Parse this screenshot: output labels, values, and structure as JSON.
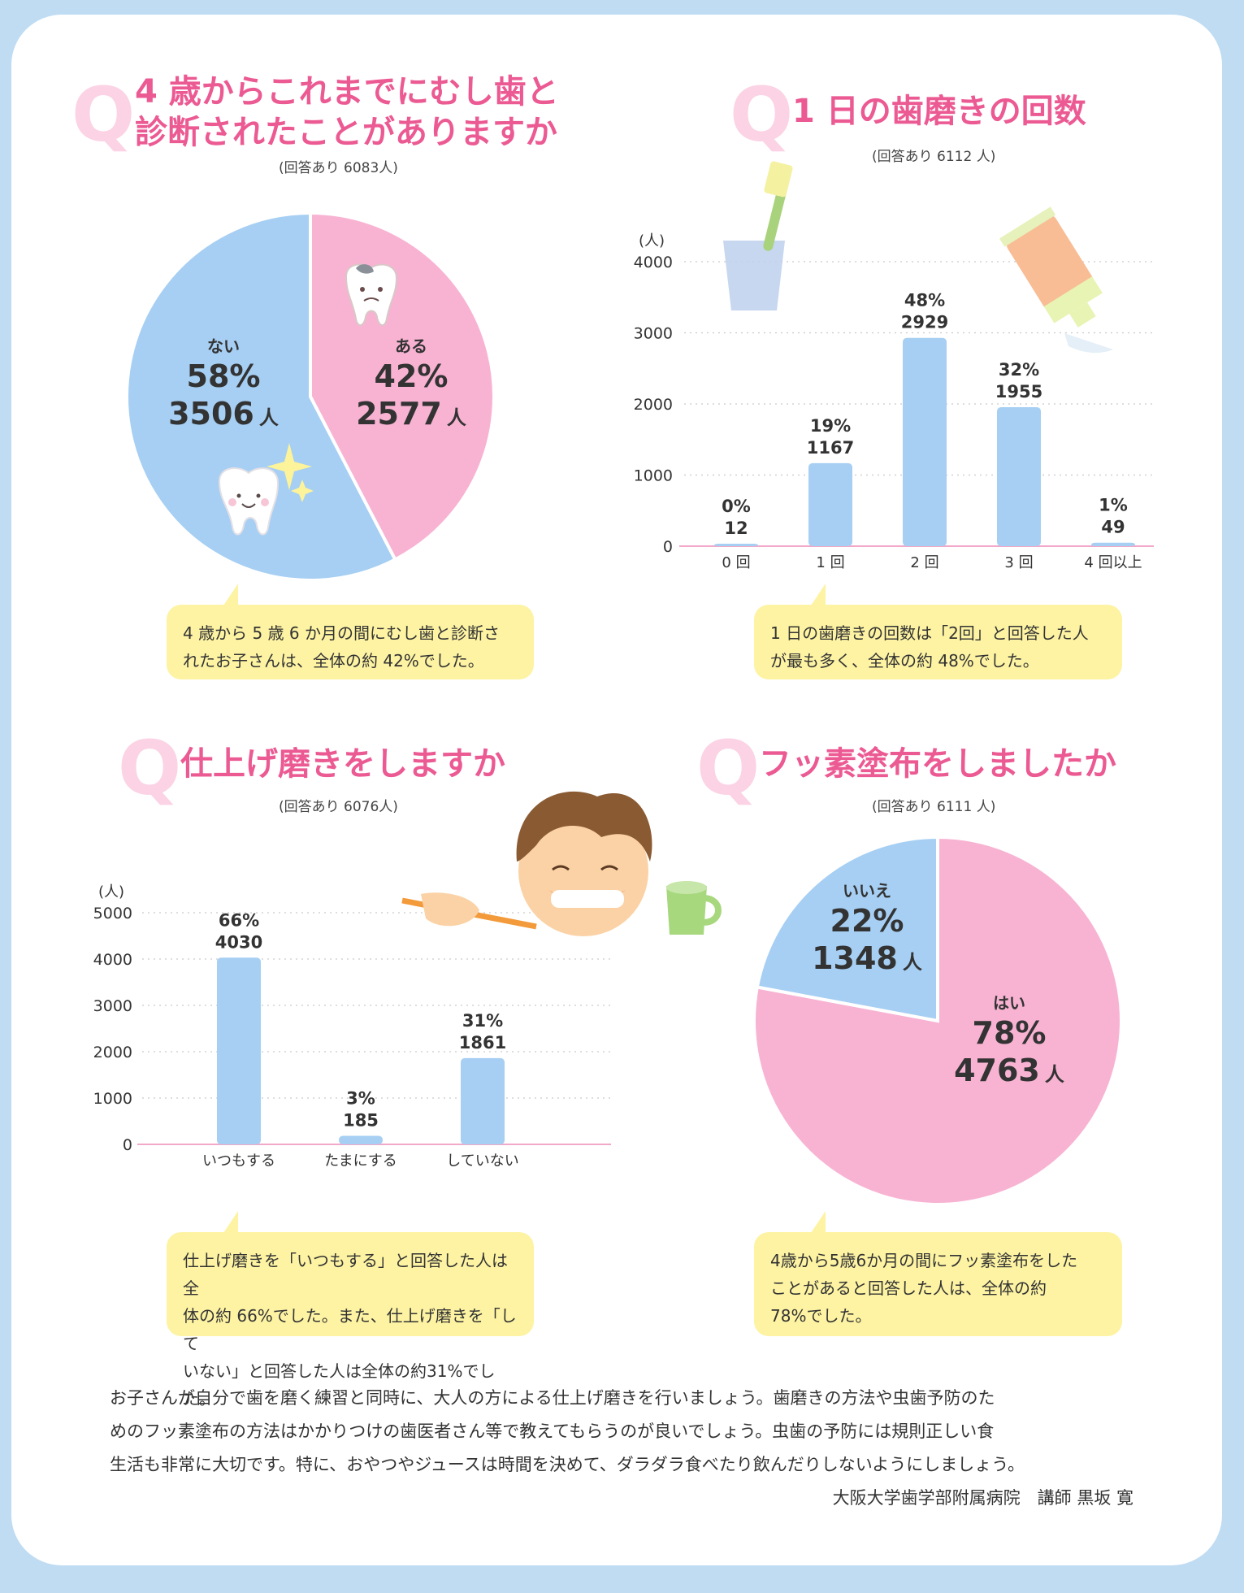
{
  "colors": {
    "blue": "#a6cff3",
    "pink": "#f8b3d3",
    "title": "#ec5a93",
    "bubble": "#fdf3a3",
    "border": "#bfdcf3"
  },
  "q1": {
    "mark": "Q",
    "title_line1": "4 歳からこれまでにむし歯と",
    "title_line2": "診断されたことがありますか",
    "respondents": "(回答あり 6083人)",
    "bubble_line1": "4 歳から 5 歳  6 か月の間にむし歯と診断さ",
    "bubble_line2": "れたお子さんは、全体の約 42%でした。"
  },
  "q2": {
    "mark": "Q",
    "title": "1 日の歯磨きの回数",
    "respondents": "(回答あり 6112 人)",
    "bubble_line1": "1 日の歯磨きの回数は「2回」と回答した人",
    "bubble_line2": "が最も多く、全体の約 48%でした。"
  },
  "q3": {
    "mark": "Q",
    "title": "仕上げ磨きをしますか",
    "respondents": "(回答あり 6076人)",
    "bubble_line1": "仕上げ磨きを「いつもする」と回答した人は全",
    "bubble_line2": "体の約 66%でした。また、仕上げ磨きを「して",
    "bubble_line3": "いない」と回答した人は全体の約31%でした。"
  },
  "q4": {
    "mark": "Q",
    "title": "フッ素塗布をしましたか",
    "respondents": "(回答あり 6111 人)",
    "bubble_line1": "4歳から5歳6か月の間にフッ素塗布をした",
    "bubble_line2": "ことがあると回答した人は、全体の約",
    "bubble_line3": "78%でした。"
  },
  "chart_data": [
    {
      "type": "pie",
      "slices": [
        {
          "label": "ある",
          "percent": "42%",
          "count": "2577",
          "value": 2577,
          "color": "#f8b3d3"
        },
        {
          "label": "ない",
          "percent": "58%",
          "count": "3506",
          "value": 3506,
          "color": "#a6cff3"
        }
      ],
      "unit": "人"
    },
    {
      "type": "bar",
      "ylabel": "(人)",
      "ylim": [
        0,
        4000
      ],
      "yticks": [
        "0",
        "1000",
        "2000",
        "3000",
        "4000"
      ],
      "categories": [
        "0 回",
        "1 回",
        "2 回",
        "3 回",
        "4 回以上"
      ],
      "values": [
        12,
        1167,
        2929,
        1955,
        49
      ],
      "percents": [
        "0%",
        "19%",
        "48%",
        "32%",
        "1%"
      ],
      "grid": true
    },
    {
      "type": "bar",
      "ylabel": "(人)",
      "ylim": [
        0,
        5000
      ],
      "yticks": [
        "0",
        "1000",
        "2000",
        "3000",
        "4000",
        "5000"
      ],
      "categories": [
        "いつもする",
        "たまにする",
        "していない"
      ],
      "values": [
        4030,
        185,
        1861
      ],
      "percents": [
        "66%",
        "3%",
        "31%"
      ],
      "grid": true
    },
    {
      "type": "pie",
      "slices": [
        {
          "label": "はい",
          "percent": "78%",
          "count": "4763",
          "value": 4763,
          "color": "#f8b3d3"
        },
        {
          "label": "いいえ",
          "percent": "22%",
          "count": "1348",
          "value": 1348,
          "color": "#a6cff3"
        }
      ],
      "unit": "人"
    }
  ],
  "footer": {
    "line1": "お子さんが自分で歯を磨く練習と同時に、大人の方による仕上げ磨きを行いましょう。歯磨きの方法や虫歯予防のた",
    "line2": "めのフッ素塗布の方法はかかりつけの歯医者さん等で教えてもらうのが良いでしょう。虫歯の予防には規則正しい食",
    "line3": "生活も非常に大切です。特に、おやつやジュースは時間を決めて、ダラダラ食べたり飲んだりしないようにしましょう。",
    "signature": "大阪大学歯学部附属病院　講師 黒坂 寛"
  }
}
